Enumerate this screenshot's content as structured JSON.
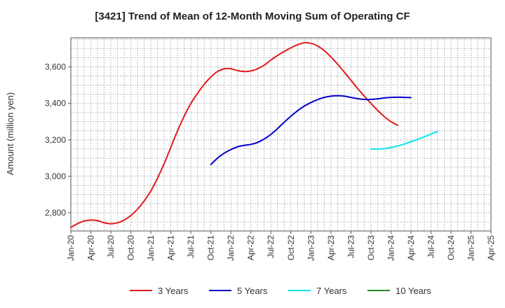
{
  "chart_data": {
    "type": "line",
    "title": "[3421]  Trend of Mean of 12-Month Moving Sum of Operating CF",
    "xlabel": "",
    "ylabel": "Amount (million yen)",
    "ylim": [
      2700,
      3760
    ],
    "yticks": [
      2800,
      3000,
      3200,
      3400,
      3600
    ],
    "ytick_labels": [
      "2,800",
      "3,000",
      "3,200",
      "3,400",
      "3,600"
    ],
    "xlim": [
      0,
      63
    ],
    "xticks": [
      0,
      3,
      6,
      9,
      12,
      15,
      18,
      21,
      24,
      27,
      30,
      33,
      36,
      39,
      42,
      45,
      48,
      51,
      54,
      57,
      60,
      63
    ],
    "xtick_labels": [
      "Jan-20",
      "Apr-20",
      "Jul-20",
      "Oct-20",
      "Jan-21",
      "Apr-21",
      "Jul-21",
      "Oct-21",
      "Jan-22",
      "Apr-22",
      "Jul-22",
      "Oct-22",
      "Jan-23",
      "Apr-23",
      "Jul-23",
      "Oct-23",
      "Jan-24",
      "Apr-24",
      "Jul-24",
      "Oct-24",
      "Jan-25",
      "Apr-25"
    ],
    "grid": true,
    "legend_position": "bottom",
    "series": [
      {
        "name": "3 Years",
        "color": "#e31a1c",
        "points": [
          [
            0,
            2720
          ],
          [
            1,
            2740
          ],
          [
            2,
            2755
          ],
          [
            3,
            2760
          ],
          [
            4,
            2757
          ],
          [
            5,
            2745
          ],
          [
            6,
            2740
          ],
          [
            7,
            2745
          ],
          [
            8,
            2760
          ],
          [
            9,
            2785
          ],
          [
            10,
            2820
          ],
          [
            11,
            2865
          ],
          [
            12,
            2920
          ],
          [
            13,
            2990
          ],
          [
            14,
            3070
          ],
          [
            15,
            3160
          ],
          [
            16,
            3250
          ],
          [
            17,
            3330
          ],
          [
            18,
            3400
          ],
          [
            19,
            3455
          ],
          [
            20,
            3505
          ],
          [
            21,
            3545
          ],
          [
            22,
            3575
          ],
          [
            23,
            3590
          ],
          [
            24,
            3590
          ],
          [
            25,
            3580
          ],
          [
            26,
            3575
          ],
          [
            27,
            3578
          ],
          [
            28,
            3590
          ],
          [
            29,
            3610
          ],
          [
            30,
            3638
          ],
          [
            31,
            3663
          ],
          [
            32,
            3685
          ],
          [
            33,
            3705
          ],
          [
            34,
            3722
          ],
          [
            35,
            3732
          ],
          [
            36,
            3730
          ],
          [
            37,
            3715
          ],
          [
            38,
            3690
          ],
          [
            39,
            3655
          ],
          [
            40,
            3615
          ],
          [
            41,
            3572
          ],
          [
            42,
            3527
          ],
          [
            43,
            3482
          ],
          [
            44,
            3440
          ],
          [
            45,
            3400
          ],
          [
            46,
            3362
          ],
          [
            47,
            3328
          ],
          [
            48,
            3300
          ],
          [
            49,
            3280
          ]
        ]
      },
      {
        "name": "5 Years",
        "color": "#0000cc",
        "points": [
          [
            21,
            3065
          ],
          [
            22,
            3100
          ],
          [
            23,
            3127
          ],
          [
            24,
            3147
          ],
          [
            25,
            3162
          ],
          [
            26,
            3170
          ],
          [
            27,
            3175
          ],
          [
            28,
            3186
          ],
          [
            29,
            3205
          ],
          [
            30,
            3230
          ],
          [
            31,
            3262
          ],
          [
            32,
            3297
          ],
          [
            33,
            3330
          ],
          [
            34,
            3360
          ],
          [
            35,
            3385
          ],
          [
            36,
            3405
          ],
          [
            37,
            3421
          ],
          [
            38,
            3433
          ],
          [
            39,
            3440
          ],
          [
            40,
            3442
          ],
          [
            41,
            3440
          ],
          [
            42,
            3433
          ],
          [
            43,
            3426
          ],
          [
            44,
            3422
          ],
          [
            45,
            3422
          ],
          [
            46,
            3425
          ],
          [
            47,
            3430
          ],
          [
            48,
            3433
          ],
          [
            49,
            3434
          ],
          [
            50,
            3433
          ],
          [
            51,
            3432
          ]
        ]
      },
      {
        "name": "7 Years",
        "color": "#00e5ee",
        "points": [
          [
            45,
            3150
          ],
          [
            46,
            3150
          ],
          [
            47,
            3152
          ],
          [
            48,
            3158
          ],
          [
            49,
            3166
          ],
          [
            50,
            3177
          ],
          [
            51,
            3190
          ],
          [
            52,
            3203
          ],
          [
            53,
            3217
          ],
          [
            54,
            3232
          ],
          [
            55,
            3247
          ]
        ]
      },
      {
        "name": "10 Years",
        "color": "#228b22",
        "points": []
      }
    ]
  }
}
